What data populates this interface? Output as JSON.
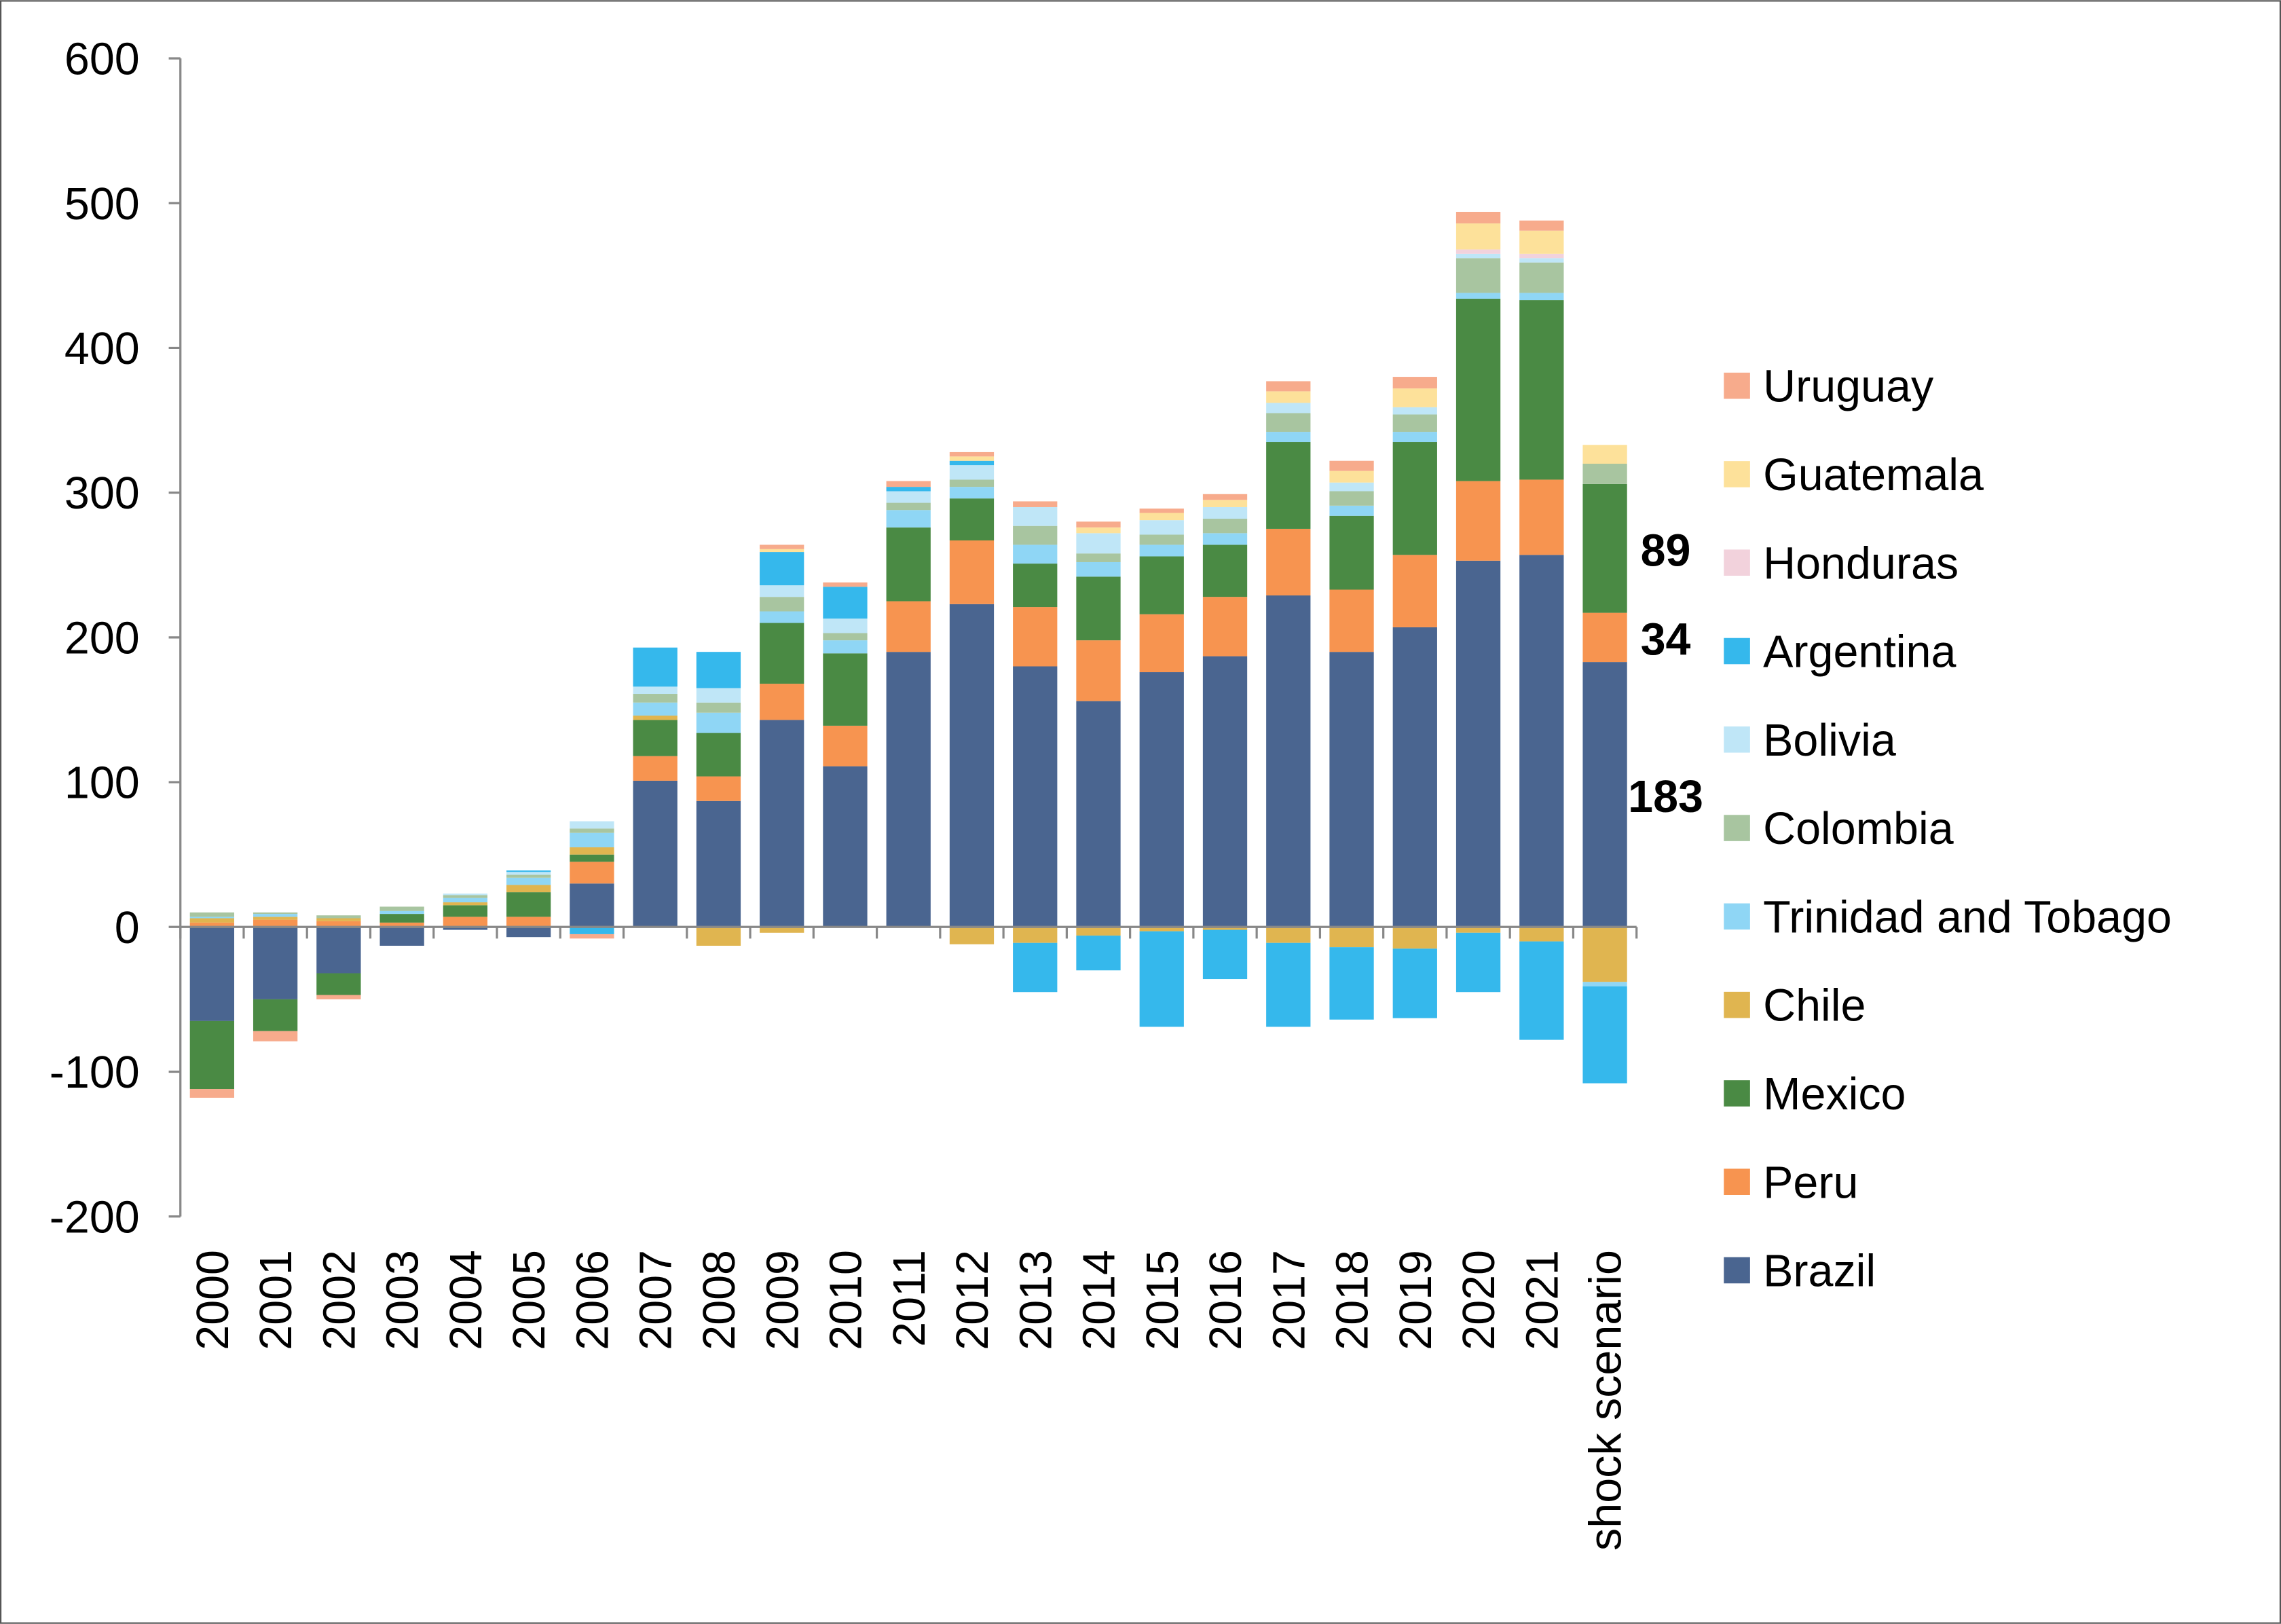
{
  "chart_data": {
    "type": "stacked-bar",
    "categories": [
      "2000",
      "2001",
      "2002",
      "2003",
      "2004",
      "2005",
      "2006",
      "2007",
      "2008",
      "2009",
      "2010",
      "2011",
      "2012",
      "2013",
      "2014",
      "2015",
      "2016",
      "2017",
      "2018",
      "2019",
      "2020",
      "2021",
      "shock scenario"
    ],
    "ylim": [
      -200,
      600
    ],
    "yticks": [
      -200,
      -100,
      0,
      100,
      200,
      300,
      400,
      500,
      600
    ],
    "grid": false,
    "legend": "right",
    "series": [
      {
        "name": "Brazil",
        "color": "#4a6590",
        "label_last": true,
        "values": [
          -65,
          -50,
          -32,
          -13,
          -2,
          -7,
          30,
          101,
          87,
          143,
          111,
          190,
          223,
          180,
          156,
          176,
          187,
          229,
          190,
          207,
          253,
          257,
          183
        ]
      },
      {
        "name": "Peru",
        "color": "#f79450",
        "label_last": true,
        "values": [
          3,
          5,
          4,
          3,
          7,
          7,
          15,
          17,
          17,
          25,
          28,
          35,
          44,
          41,
          42,
          40,
          41,
          46,
          43,
          50,
          55,
          52,
          34
        ]
      },
      {
        "name": "Mexico",
        "color": "#4a8a44",
        "label_last": true,
        "values": [
          -47,
          -22,
          -15,
          6,
          8,
          17,
          5,
          25,
          30,
          42,
          50,
          51,
          29,
          30,
          44,
          40,
          36,
          60,
          51,
          78,
          126,
          124,
          89
        ]
      },
      {
        "name": "Chile",
        "color": "#e0b550",
        "values": [
          3,
          2,
          2,
          0,
          2,
          5,
          5,
          3,
          -13,
          -4,
          0,
          0,
          -12,
          -11,
          -6,
          -3,
          -2,
          -11,
          -14,
          -15,
          -4,
          -10,
          -38
        ]
      },
      {
        "name": "Trinidad and Tobago",
        "color": "#8fd6f5",
        "values": [
          1,
          2,
          0,
          2,
          3,
          5,
          10,
          9,
          14,
          8,
          9,
          12,
          8,
          13,
          10,
          8,
          8,
          7,
          7,
          7,
          4,
          5,
          -3
        ]
      },
      {
        "name": "Colombia",
        "color": "#a8c5a0",
        "values": [
          3,
          1,
          2,
          3,
          2,
          2,
          3,
          6,
          7,
          10,
          5,
          5,
          5,
          13,
          6,
          7,
          10,
          13,
          10,
          12,
          24,
          21,
          14
        ]
      },
      {
        "name": "Bolivia",
        "color": "#bfe6f7",
        "values": [
          0,
          0,
          0,
          0,
          1,
          2,
          5,
          5,
          10,
          8,
          10,
          8,
          10,
          13,
          14,
          10,
          8,
          7,
          6,
          5,
          3,
          3,
          0
        ]
      },
      {
        "name": "Argentina",
        "color": "#35b8ec",
        "values": [
          0,
          0,
          0,
          0,
          0,
          1,
          -5,
          27,
          25,
          23,
          22,
          3,
          3,
          -34,
          -24,
          -66,
          -34,
          -58,
          -50,
          -48,
          -41,
          -68,
          -67
        ]
      },
      {
        "name": "Honduras",
        "color": "#f2d2dc",
        "values": [
          0,
          0,
          0,
          0,
          0,
          0,
          0,
          0,
          0,
          0,
          0,
          0,
          0,
          0,
          0,
          0,
          0,
          0,
          0,
          0,
          3,
          3,
          0
        ]
      },
      {
        "name": "Guatemala",
        "color": "#fde19a",
        "values": [
          0,
          0,
          0,
          0,
          0,
          0,
          0,
          0,
          0,
          2,
          0,
          0,
          3,
          0,
          4,
          5,
          5,
          8,
          8,
          13,
          18,
          16,
          13
        ]
      },
      {
        "name": "Uruguay",
        "color": "#f7ab8c",
        "values": [
          -6,
          -7,
          -3,
          0,
          0,
          0,
          -3,
          0,
          0,
          3,
          3,
          4,
          3,
          4,
          4,
          3,
          4,
          7,
          7,
          8,
          8,
          7,
          0
        ]
      }
    ]
  }
}
